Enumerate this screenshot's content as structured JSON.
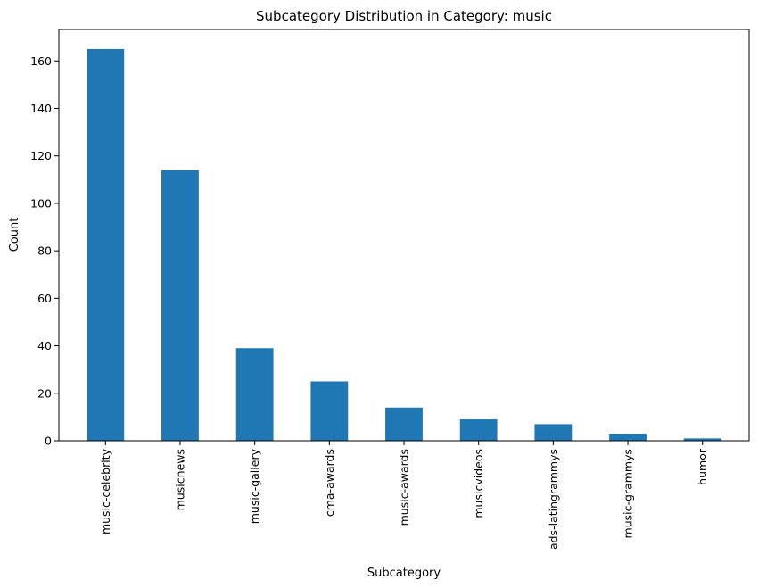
{
  "chart_data": {
    "type": "bar",
    "title": "Subcategory Distribution in Category: music",
    "xlabel": "Subcategory",
    "ylabel": "Count",
    "categories": [
      "music-celebrity",
      "musicnews",
      "music-gallery",
      "cma-awards",
      "music-awards",
      "musicvideos",
      "ads-latingrammys",
      "music-grammys",
      "humor"
    ],
    "values": [
      165,
      114,
      39,
      25,
      14,
      9,
      7,
      3,
      1
    ],
    "ylim": [
      0,
      173.25
    ],
    "yticks": [
      0,
      20,
      40,
      60,
      80,
      100,
      120,
      140,
      160
    ],
    "bar_color": "#1f77b4",
    "grid": false,
    "legend": "none"
  }
}
